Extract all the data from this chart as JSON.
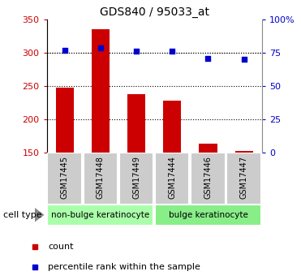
{
  "title": "GDS840 / 95033_at",
  "samples": [
    "GSM17445",
    "GSM17448",
    "GSM17449",
    "GSM17444",
    "GSM17446",
    "GSM17447"
  ],
  "counts": [
    248,
    335,
    238,
    228,
    163,
    153
  ],
  "percentiles": [
    77,
    79,
    76,
    76,
    71,
    70
  ],
  "ylim_left": [
    150,
    350
  ],
  "ylim_right": [
    0,
    100
  ],
  "yticks_left": [
    150,
    200,
    250,
    300,
    350
  ],
  "yticks_right": [
    0,
    25,
    50,
    75,
    100
  ],
  "ytick_labels_right": [
    "0",
    "25",
    "50",
    "75",
    "100%"
  ],
  "bar_color": "#cc0000",
  "dot_color": "#0000cc",
  "groups": [
    {
      "label": "non-bulge keratinocyte",
      "indices": [
        0,
        1,
        2
      ],
      "color": "#aaffaa"
    },
    {
      "label": "bulge keratinocyte",
      "indices": [
        3,
        4,
        5
      ],
      "color": "#88ee88"
    }
  ],
  "cell_type_label": "cell type",
  "legend_count": "count",
  "legend_percentile": "percentile rank within the sample",
  "bar_width": 0.5,
  "tick_color_left": "#cc0000",
  "tick_color_right": "#0000cc",
  "label_box_color": "#cccccc",
  "arrow_color": "#888888"
}
